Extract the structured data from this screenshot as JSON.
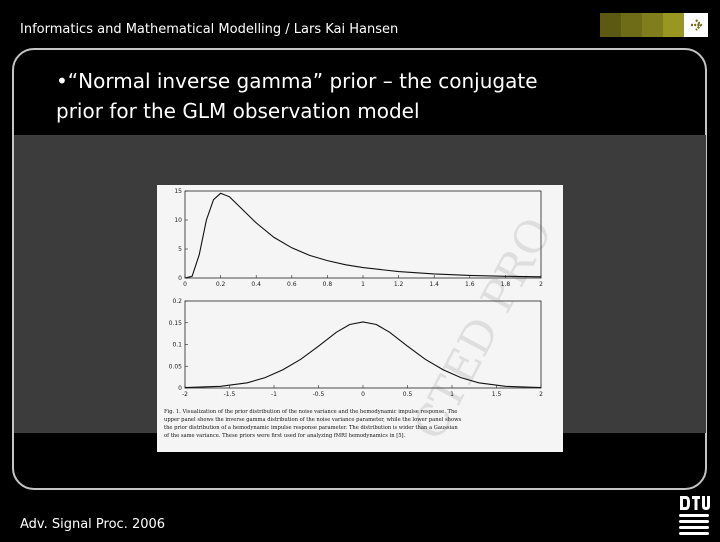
{
  "header": {
    "title": "Informatics and Mathematical Modelling / Lars Kai Hansen"
  },
  "nav": {
    "squares": [
      "#5c5a12",
      "#6e6c16",
      "#807d1c",
      "#9a9622"
    ],
    "icon": "arrow-right-icon"
  },
  "slide": {
    "bullet_lines": [
      "•“Normal inverse gamma” prior – the conjugate",
      "prior for the GLM observation model"
    ]
  },
  "figure": {
    "watermark": "CTED PRO",
    "caption_lines": [
      "Fig. 1.  Visualization of the prior distribution of the noise variance and the hemodynamic impulse response. The",
      "upper panel shows the inverse gamma distribution of the noise variance parameter, while the lower panel shows",
      "the prior distribution of a hemodynamic impulse response parameter. The distribution is wider than a Gaussian",
      "of the same variance. These priors were first used for analyzing fMRI hemodynamics in [5]."
    ]
  },
  "chart_data": [
    {
      "type": "line",
      "title": "",
      "xlabel": "",
      "ylabel": "",
      "xlim": [
        0,
        2
      ],
      "ylim": [
        0,
        15
      ],
      "xticks": [
        0,
        0.2,
        0.4,
        0.6,
        0.8,
        1,
        1.2,
        1.4,
        1.6,
        1.8,
        2
      ],
      "xtick_labels": [
        "0",
        "0.2",
        "0.4",
        "0.6",
        "0.8",
        "1",
        "1.2",
        "1.4",
        "1.6",
        "1.8",
        "2"
      ],
      "yticks": [
        0,
        5,
        10,
        15
      ],
      "ytick_labels": [
        "0",
        "5",
        "10",
        "15"
      ],
      "x": [
        0,
        0.04,
        0.08,
        0.12,
        0.16,
        0.2,
        0.25,
        0.3,
        0.4,
        0.5,
        0.6,
        0.7,
        0.8,
        0.9,
        1.0,
        1.2,
        1.4,
        1.6,
        1.8,
        2.0
      ],
      "y": [
        0,
        0.3,
        4,
        10,
        13.5,
        14.6,
        14,
        12.5,
        9.5,
        7,
        5.2,
        3.9,
        3,
        2.3,
        1.8,
        1.1,
        0.7,
        0.45,
        0.3,
        0.2
      ],
      "grid": false
    },
    {
      "type": "line",
      "title": "",
      "xlabel": "",
      "ylabel": "",
      "xlim": [
        -2,
        2
      ],
      "ylim": [
        0,
        0.2
      ],
      "xticks": [
        -2,
        -1.5,
        -1,
        -0.5,
        0,
        0.5,
        1,
        1.5,
        2
      ],
      "xtick_labels": [
        "-2",
        "-1.5",
        "-1",
        "-0.5",
        "0",
        "0.5",
        "1",
        "1.5",
        "2"
      ],
      "yticks": [
        0,
        0.05,
        0.1,
        0.15,
        0.2
      ],
      "ytick_labels": [
        "0",
        "0.05",
        "0.1",
        "0.15",
        "0.2"
      ],
      "x": [
        -2,
        -1.6,
        -1.3,
        -1.1,
        -0.9,
        -0.7,
        -0.5,
        -0.3,
        -0.15,
        0,
        0.15,
        0.3,
        0.5,
        0.7,
        0.9,
        1.1,
        1.3,
        1.6,
        2
      ],
      "y": [
        0.001,
        0.004,
        0.012,
        0.024,
        0.042,
        0.066,
        0.096,
        0.128,
        0.146,
        0.152,
        0.146,
        0.128,
        0.096,
        0.066,
        0.042,
        0.024,
        0.012,
        0.004,
        0.001
      ],
      "grid": false
    }
  ],
  "footer": {
    "text": "Adv. Signal Proc. 2006"
  },
  "logo": {
    "text": "DTU"
  }
}
